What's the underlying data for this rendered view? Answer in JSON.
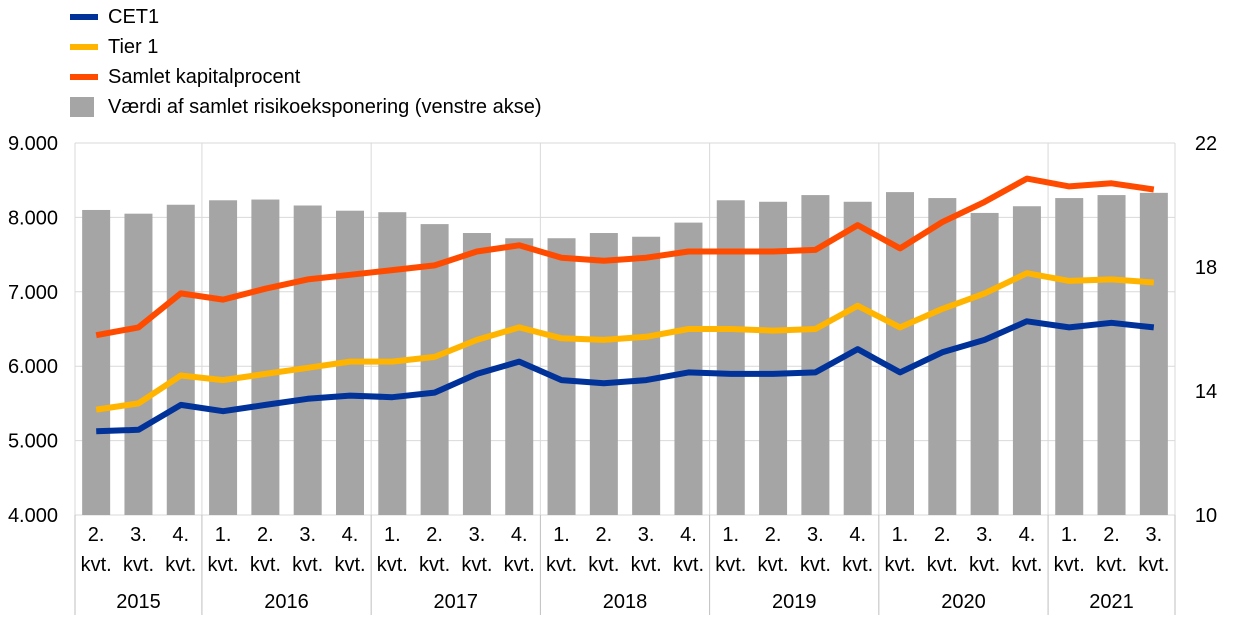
{
  "chart_data": {
    "type": "bar",
    "legend_position": "top-left",
    "grid": true,
    "left_axis": {
      "ylim": [
        4000,
        9000
      ],
      "ticks": [
        "4.000",
        "5.000",
        "6.000",
        "7.000",
        "8.000",
        "9.000"
      ],
      "tick_values": [
        4000,
        5000,
        6000,
        7000,
        8000,
        9000
      ]
    },
    "right_axis": {
      "ylim": [
        10,
        22
      ],
      "ticks": [
        "10",
        "14",
        "18",
        "22"
      ],
      "tick_values": [
        10,
        14,
        18,
        22
      ]
    },
    "categories": [
      {
        "q": "2.",
        "unit": "kvt."
      },
      {
        "q": "3.",
        "unit": "kvt."
      },
      {
        "q": "4.",
        "unit": "kvt."
      },
      {
        "q": "1.",
        "unit": "kvt."
      },
      {
        "q": "2.",
        "unit": "kvt."
      },
      {
        "q": "3.",
        "unit": "kvt."
      },
      {
        "q": "4.",
        "unit": "kvt."
      },
      {
        "q": "1.",
        "unit": "kvt."
      },
      {
        "q": "2.",
        "unit": "kvt."
      },
      {
        "q": "3.",
        "unit": "kvt."
      },
      {
        "q": "4.",
        "unit": "kvt."
      },
      {
        "q": "1.",
        "unit": "kvt."
      },
      {
        "q": "2.",
        "unit": "kvt."
      },
      {
        "q": "3.",
        "unit": "kvt."
      },
      {
        "q": "4.",
        "unit": "kvt."
      },
      {
        "q": "1.",
        "unit": "kvt."
      },
      {
        "q": "2.",
        "unit": "kvt."
      },
      {
        "q": "3.",
        "unit": "kvt."
      },
      {
        "q": "4.",
        "unit": "kvt."
      },
      {
        "q": "1.",
        "unit": "kvt."
      },
      {
        "q": "2.",
        "unit": "kvt."
      },
      {
        "q": "3.",
        "unit": "kvt."
      },
      {
        "q": "4.",
        "unit": "kvt."
      },
      {
        "q": "1.",
        "unit": "kvt."
      },
      {
        "q": "2.",
        "unit": "kvt."
      },
      {
        "q": "3.",
        "unit": "kvt."
      }
    ],
    "years": [
      {
        "label": "2015",
        "count": 3
      },
      {
        "label": "2016",
        "count": 4
      },
      {
        "label": "2017",
        "count": 4
      },
      {
        "label": "2018",
        "count": 4
      },
      {
        "label": "2019",
        "count": 4
      },
      {
        "label": "2020",
        "count": 4
      },
      {
        "label": "2021",
        "count": 3
      }
    ],
    "bars": {
      "name": "Værdi af samlet risikoeksponering (venstre akse)",
      "axis": "left",
      "color": "#a5a5a5",
      "values": [
        8100,
        8050,
        8170,
        8230,
        8240,
        8160,
        8090,
        8070,
        7910,
        7790,
        7720,
        7720,
        7790,
        7740,
        7930,
        8230,
        8210,
        8300,
        8210,
        8340,
        8260,
        8060,
        8150,
        8260,
        8300,
        8330
      ]
    },
    "series": [
      {
        "name": "CET1",
        "axis": "right",
        "color": "#003299",
        "values": [
          12.7,
          12.75,
          13.55,
          13.35,
          13.55,
          13.75,
          13.85,
          13.8,
          13.95,
          14.55,
          14.95,
          14.35,
          14.25,
          14.35,
          14.6,
          14.55,
          14.55,
          14.6,
          15.35,
          14.6,
          15.25,
          15.65,
          16.25,
          16.05,
          16.2,
          16.05
        ]
      },
      {
        "name": "Tier 1",
        "axis": "right",
        "color": "#ffb400",
        "values": [
          13.4,
          13.6,
          14.5,
          14.35,
          14.55,
          14.75,
          14.95,
          14.95,
          15.1,
          15.65,
          16.05,
          15.7,
          15.65,
          15.75,
          16.0,
          16.0,
          15.95,
          16.0,
          16.75,
          16.05,
          16.65,
          17.15,
          17.8,
          17.55,
          17.6,
          17.5
        ]
      },
      {
        "name": "Samlet kapitalprocent",
        "axis": "right",
        "color": "#ff4b00",
        "values": [
          15.8,
          16.05,
          17.15,
          16.95,
          17.3,
          17.6,
          17.75,
          17.9,
          18.05,
          18.5,
          18.7,
          18.3,
          18.2,
          18.3,
          18.5,
          18.5,
          18.5,
          18.55,
          19.35,
          18.6,
          19.45,
          20.1,
          20.85,
          20.6,
          20.7,
          20.5
        ]
      }
    ]
  }
}
